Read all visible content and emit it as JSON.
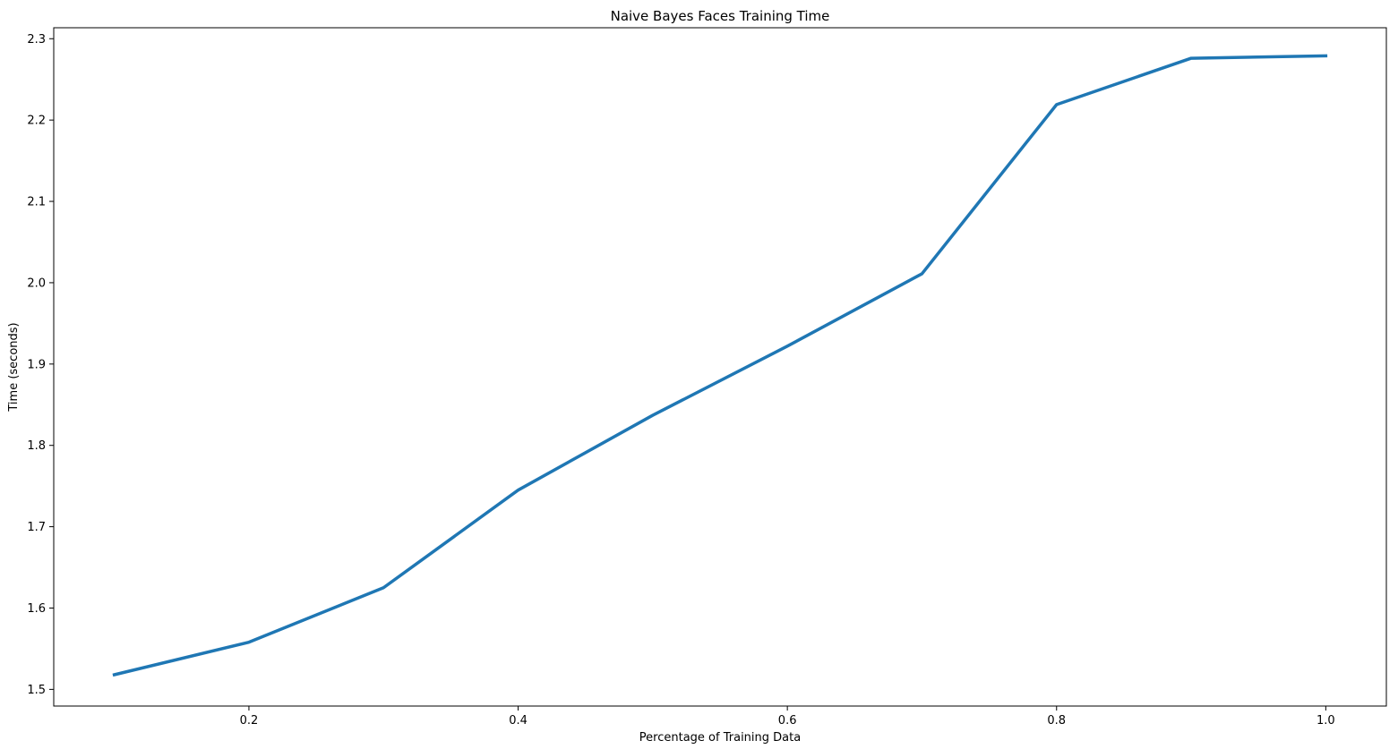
{
  "chart_data": {
    "type": "line",
    "title": "Naive Bayes Faces Training Time",
    "xlabel": "Percentage of Training Data",
    "ylabel": "Time (seconds)",
    "xlim": [
      0.055,
      1.045
    ],
    "ylim": [
      1.4795,
      2.3135
    ],
    "xticks": [
      0.2,
      0.4,
      0.6,
      0.8,
      1.0
    ],
    "xtick_labels": [
      "0.2",
      "0.4",
      "0.6",
      "0.8",
      "1.0"
    ],
    "yticks": [
      1.5,
      1.6,
      1.7,
      1.8,
      1.9,
      2.0,
      2.1,
      2.2,
      2.3
    ],
    "ytick_labels": [
      "1.5",
      "1.6",
      "1.7",
      "1.8",
      "1.9",
      "2.0",
      "2.1",
      "2.2",
      "2.3"
    ],
    "grid": false,
    "series": [
      {
        "color": "#1f77b4",
        "x": [
          0.1,
          0.2,
          0.3,
          0.4,
          0.5,
          0.6,
          0.7,
          0.8,
          0.9,
          1.0
        ],
        "y": [
          1.518,
          1.558,
          1.625,
          1.745,
          1.837,
          1.922,
          2.011,
          2.219,
          2.276,
          2.279
        ]
      }
    ]
  }
}
